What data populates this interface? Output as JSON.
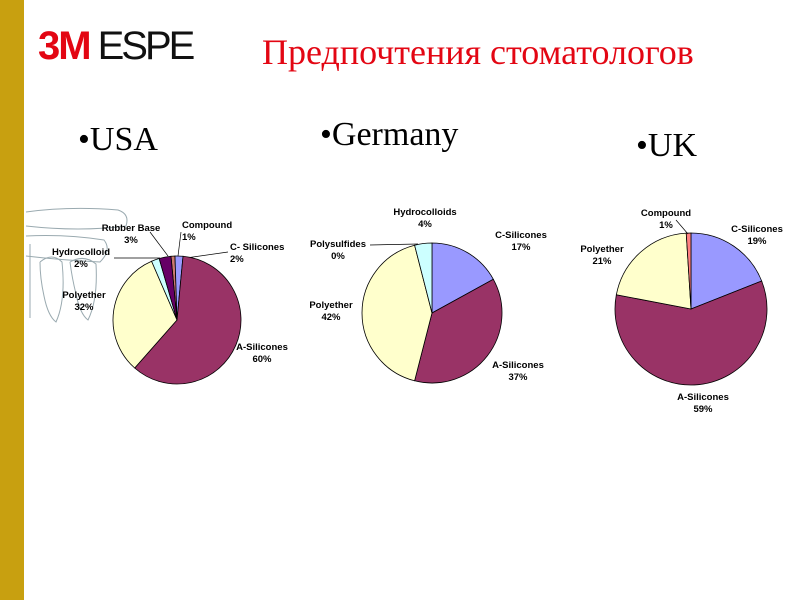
{
  "header": {
    "logo_mark": "3M",
    "logo_text": "ESPE",
    "title": "Предпочтения стоматологов"
  },
  "colors": {
    "stripe": "#C8A010",
    "title": "#E30613"
  },
  "chart_data": [
    {
      "type": "pie",
      "title": "•USA",
      "slices": [
        {
          "label": "Compound",
          "value": 1,
          "pct": "1%",
          "color": "#CC7A6E"
        },
        {
          "label": "C- Silicones",
          "value": 2,
          "pct": "2%",
          "color": "#9A9AFF"
        },
        {
          "label": "A-Silicones",
          "value": 60,
          "pct": "60%",
          "color": "#993366"
        },
        {
          "label": "Polyether",
          "value": 32,
          "pct": "32%",
          "color": "#FFFFCC"
        },
        {
          "label": "Hydrocolloid",
          "value": 2,
          "pct": "2%",
          "color": "#CCFFFF"
        },
        {
          "label": "Rubber Base",
          "value": 3,
          "pct": "3%",
          "color": "#660066"
        }
      ]
    },
    {
      "type": "pie",
      "title": "•Germany",
      "slices": [
        {
          "label": "C-Silicones",
          "value": 17,
          "pct": "17%",
          "color": "#9999FF"
        },
        {
          "label": "A-Silicones",
          "value": 37,
          "pct": "37%",
          "color": "#993366"
        },
        {
          "label": "Polyether",
          "value": 42,
          "pct": "42%",
          "color": "#FFFFCC"
        },
        {
          "label": "Polysulfides",
          "value": 0,
          "pct": "0%",
          "color": "#660066"
        },
        {
          "label": "Hydrocolloids",
          "value": 4,
          "pct": "4%",
          "color": "#CCFFFF"
        }
      ]
    },
    {
      "type": "pie",
      "title": "•UK",
      "slices": [
        {
          "label": "C-Silicones",
          "value": 19,
          "pct": "19%",
          "color": "#9999FF"
        },
        {
          "label": "A-Silicones",
          "value": 59,
          "pct": "59%",
          "color": "#993366"
        },
        {
          "label": "Polyether",
          "value": 21,
          "pct": "21%",
          "color": "#FFFFCC"
        },
        {
          "label": "Compound",
          "value": 1,
          "pct": "1%",
          "color": "#FF8080"
        }
      ]
    }
  ]
}
